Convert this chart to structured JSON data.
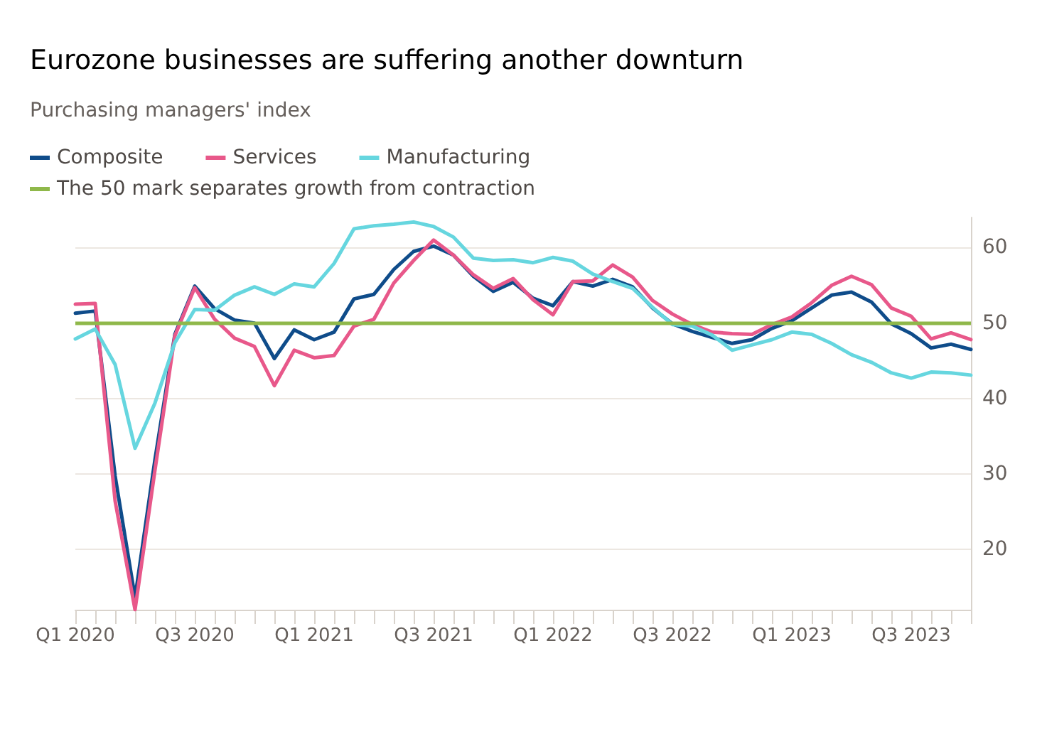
{
  "chart_data": {
    "type": "line",
    "title": "Eurozone businesses are suffering another downturn",
    "subtitle": "Purchasing managers' index",
    "categories": [
      "Q1 2020",
      null,
      null,
      null,
      null,
      null,
      "Q3 2020",
      null,
      null,
      null,
      null,
      null,
      "Q1 2021",
      null,
      null,
      null,
      null,
      null,
      "Q3 2021",
      null,
      null,
      null,
      null,
      null,
      "Q1 2022",
      null,
      null,
      null,
      null,
      null,
      "Q3 2022",
      null,
      null,
      null,
      null,
      null,
      "Q1 2023",
      null,
      null,
      null,
      null,
      null,
      "Q3 2023",
      null,
      null,
      null
    ],
    "series": [
      {
        "name": "Composite",
        "color": "#0f4c8a",
        "values": [
          51.3,
          51.6,
          29.7,
          13.6,
          31.9,
          48.5,
          54.9,
          51.9,
          50.4,
          50.0,
          45.3,
          49.1,
          47.8,
          48.8,
          53.2,
          53.8,
          57.1,
          59.5,
          60.2,
          59.0,
          56.2,
          54.2,
          55.4,
          53.3,
          52.3,
          55.5,
          54.9,
          55.8,
          54.8,
          52.0,
          49.9,
          48.9,
          48.1,
          47.3,
          47.8,
          49.3,
          50.3,
          52.0,
          53.7,
          54.1,
          52.8,
          49.9,
          48.6,
          46.7,
          47.2,
          46.5
        ]
      },
      {
        "name": "Services",
        "color": "#e8588a",
        "values": [
          52.5,
          52.6,
          26.4,
          12.0,
          30.5,
          48.3,
          54.7,
          50.5,
          48.0,
          46.9,
          41.7,
          46.4,
          45.4,
          45.7,
          49.6,
          50.5,
          55.3,
          58.3,
          61.0,
          59.0,
          56.4,
          54.6,
          55.9,
          53.1,
          51.1,
          55.5,
          55.6,
          57.7,
          56.1,
          53.0,
          51.2,
          49.8,
          48.8,
          48.6,
          48.5,
          49.8,
          50.8,
          52.7,
          55.0,
          56.2,
          55.1,
          52.0,
          50.9,
          47.9,
          48.7,
          47.8
        ]
      },
      {
        "name": "Manufacturing",
        "color": "#66d6df",
        "values": [
          47.9,
          49.2,
          44.5,
          33.4,
          39.4,
          47.4,
          51.8,
          51.7,
          53.7,
          54.8,
          53.8,
          55.2,
          54.8,
          57.9,
          62.5,
          62.9,
          63.1,
          63.4,
          62.8,
          61.4,
          58.6,
          58.3,
          58.4,
          58.0,
          58.7,
          58.2,
          56.5,
          55.5,
          54.6,
          52.1,
          49.8,
          49.6,
          48.4,
          46.4,
          47.1,
          47.8,
          48.8,
          48.5,
          47.3,
          45.8,
          44.8,
          43.4,
          42.7,
          43.5,
          43.4,
          43.1
        ]
      }
    ],
    "ref_lines": [
      {
        "axis": "y",
        "value": 50,
        "label": "The 50 mark separates growth from contraction",
        "color": "#8fb84a"
      }
    ],
    "ylim": [
      12,
      64
    ],
    "yticks": [
      20,
      30,
      40,
      50,
      60
    ],
    "grid": "y",
    "legend": "top left",
    "marker": "none",
    "line_style": "solid"
  }
}
